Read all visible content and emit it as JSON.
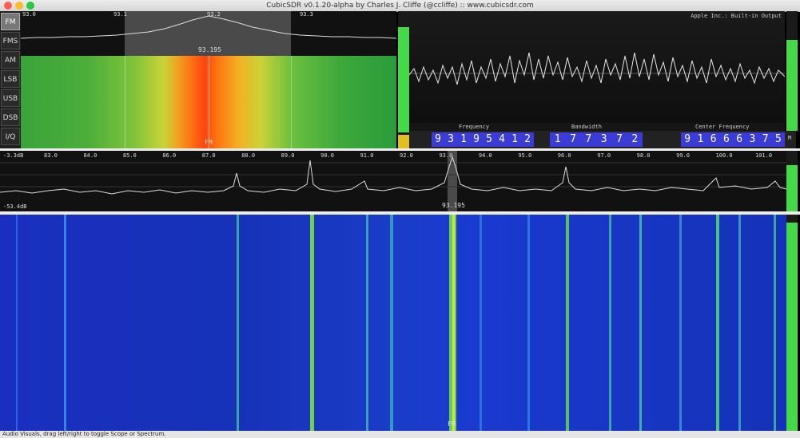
{
  "window": {
    "title": "CubicSDR v0.1.20-alpha by Charles J. Cliffe (@ccliffe)  ::  www.cubicsdr.com"
  },
  "modes": [
    {
      "label": "FM",
      "active": true
    },
    {
      "label": "FMS",
      "active": false
    },
    {
      "label": "AM",
      "active": false
    },
    {
      "label": "LSB",
      "active": false
    },
    {
      "label": "USB",
      "active": false
    },
    {
      "label": "DSB",
      "active": false
    },
    {
      "label": "I/Q",
      "active": false
    }
  ],
  "demod_spectrum": {
    "ticks": [
      "93.0",
      "93.1",
      "93.2",
      "93.3"
    ],
    "frequency_label": "93.195",
    "waterfall_marker": "FM"
  },
  "audio_scope": {
    "output_label": "Apple Inc.: Built-in Output"
  },
  "readouts": {
    "frequency": {
      "label": "Frequency",
      "digits": "93195412"
    },
    "bandwidth": {
      "label": "Bandwidth",
      "digits": "177372"
    },
    "center": {
      "label": "Center Frequency",
      "digits": "91666375"
    },
    "suffix": "M"
  },
  "main_spectrum": {
    "db_top": "-3.3dB",
    "db_bottom": "-53.4dB",
    "ticks": [
      "88.0",
      "89.0",
      "90.0",
      "91.0",
      "92.0",
      "93.0",
      "94.0",
      "95.0",
      "96.0",
      "97.0",
      "98.0",
      "99.0",
      "100.0",
      "101.0",
      "92.0",
      "93.0",
      "94.0",
      "95.0",
      "96.0",
      "97.0",
      "98.0",
      "99.0",
      "100.0",
      "101.0"
    ],
    "axis_ticks": [
      "83.0",
      "84.0",
      "85.0",
      "86.0",
      "87.0",
      "88.0",
      "89.0",
      "90.0",
      "91.0",
      "92.0",
      "93.0",
      "94.0",
      "95.0",
      "96.0",
      "97.0",
      "98.0",
      "99.0",
      "100.0",
      "101.0"
    ],
    "frequency_label": "93.195"
  },
  "main_waterfall": {
    "marker": "FM"
  },
  "status_bar": {
    "text": "Audio Visuals, drag left/right to toggle Scope or Spectrum."
  },
  "colors": {
    "meter_green": "#45d94a",
    "digit_bg": "#3b3bd6",
    "accent_yellow": "#e0c020"
  }
}
